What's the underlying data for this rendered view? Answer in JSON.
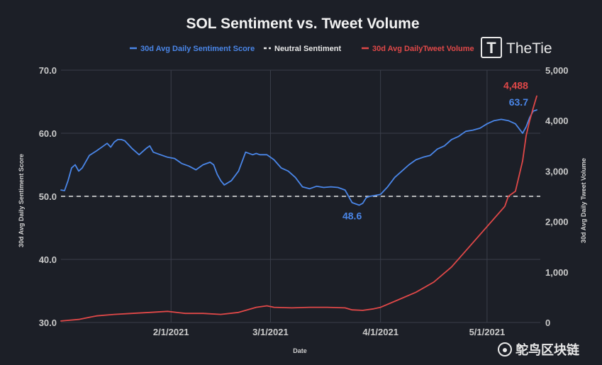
{
  "colors": {
    "background": "#1c1f27",
    "grid": "#3a3e4a",
    "sentiment": "#4a86e8",
    "volume": "#e04848",
    "neutral": "#e8e8e8",
    "text": "#c9c9c9"
  },
  "brand": {
    "logo_letter": "T",
    "name": "TheTie"
  },
  "watermark": {
    "text": "鸵鸟区块链"
  },
  "chart_data": {
    "type": "line",
    "title": "SOL Sentiment vs. Tweet Volume",
    "xlabel": "Date",
    "ylabel_left": "30d Avg Daily Sentiment Score",
    "ylabel_right": "30d Avg Daily Tweet Volume",
    "ylim_left": [
      30,
      70
    ],
    "ylim_right": [
      0,
      5000
    ],
    "x_range_days": [
      0,
      135
    ],
    "x_ticks": [
      {
        "day": 31,
        "label": "2/1/2021"
      },
      {
        "day": 59,
        "label": "3/1/2021"
      },
      {
        "day": 90,
        "label": "4/1/2021"
      },
      {
        "day": 120,
        "label": "5/1/2021"
      }
    ],
    "y_ticks_left": [
      "30.0",
      "40.0",
      "50.0",
      "60.0",
      "70.0"
    ],
    "y_ticks_right": [
      "0",
      "1,000",
      "2,000",
      "3,000",
      "4,000",
      "5,000"
    ],
    "legend": [
      {
        "label": "30d Avg Daily Sentiment Score",
        "style": "solid",
        "series": "sentiment"
      },
      {
        "label": "Neutral Sentiment",
        "style": "dashed",
        "series": "neutral"
      },
      {
        "label": "30d Avg DailyTweet Volume",
        "style": "solid",
        "series": "volume"
      }
    ],
    "neutral_value": 50,
    "series": [
      {
        "name": "30d Avg Daily Sentiment Score",
        "axis": "left",
        "x": [
          0,
          1,
          2,
          3,
          4,
          5,
          6,
          8,
          10,
          12,
          13,
          14,
          15,
          16,
          17,
          18,
          20,
          22,
          24,
          25,
          26,
          28,
          30,
          32,
          34,
          36,
          38,
          40,
          42,
          43,
          44,
          45,
          46,
          48,
          50,
          51,
          52,
          54,
          55,
          56,
          57,
          58,
          60,
          62,
          64,
          66,
          68,
          70,
          72,
          74,
          76,
          78,
          80,
          82,
          84,
          85,
          86,
          87,
          88,
          89,
          90,
          92,
          94,
          96,
          98,
          100,
          102,
          104,
          106,
          108,
          110,
          112,
          114,
          116,
          118,
          120,
          122,
          124,
          126,
          128,
          130,
          131,
          132,
          133,
          134
        ],
        "values": [
          51.0,
          50.9,
          52.5,
          54.5,
          55.0,
          54.0,
          54.5,
          56.5,
          57.2,
          58.0,
          58.4,
          57.8,
          58.6,
          59.0,
          59.0,
          58.8,
          57.6,
          56.6,
          57.6,
          58.0,
          57.0,
          56.6,
          56.2,
          56.0,
          55.2,
          54.8,
          54.2,
          55.0,
          55.4,
          55.0,
          53.5,
          52.5,
          51.8,
          52.5,
          54.0,
          55.5,
          57.0,
          56.6,
          56.8,
          56.6,
          56.6,
          56.6,
          55.8,
          54.5,
          54.0,
          53.0,
          51.5,
          51.2,
          51.6,
          51.4,
          51.5,
          51.4,
          51.0,
          49.0,
          48.6,
          48.9,
          49.8,
          50.0,
          50.1,
          50.2,
          50.3,
          51.5,
          53.0,
          54.0,
          55.0,
          55.8,
          56.2,
          56.5,
          57.5,
          58.0,
          59.0,
          59.5,
          60.3,
          60.5,
          60.8,
          61.5,
          62.0,
          62.2,
          62.0,
          61.5,
          60.0,
          61.0,
          62.5,
          63.5,
          63.7
        ],
        "annotations": [
          {
            "x": 84,
            "value": 48.6,
            "label": "48.6"
          },
          {
            "x": 134,
            "value": 63.7,
            "label": "63.7"
          }
        ]
      },
      {
        "name": "30d Avg DailyTweet Volume",
        "axis": "right",
        "x": [
          0,
          5,
          10,
          15,
          20,
          25,
          30,
          35,
          40,
          45,
          50,
          55,
          58,
          60,
          65,
          70,
          75,
          80,
          82,
          85,
          88,
          90,
          95,
          100,
          105,
          110,
          115,
          120,
          125,
          126,
          128,
          130,
          131,
          132,
          133,
          134
        ],
        "values": [
          30,
          60,
          130,
          160,
          180,
          200,
          220,
          180,
          180,
          160,
          200,
          300,
          330,
          300,
          290,
          300,
          300,
          290,
          250,
          240,
          270,
          300,
          450,
          600,
          800,
          1100,
          1500,
          1900,
          2300,
          2500,
          2600,
          3200,
          3700,
          4000,
          4250,
          4488
        ],
        "annotations": [
          {
            "x": 134,
            "value": 4488,
            "label": "4,488"
          }
        ]
      }
    ]
  }
}
